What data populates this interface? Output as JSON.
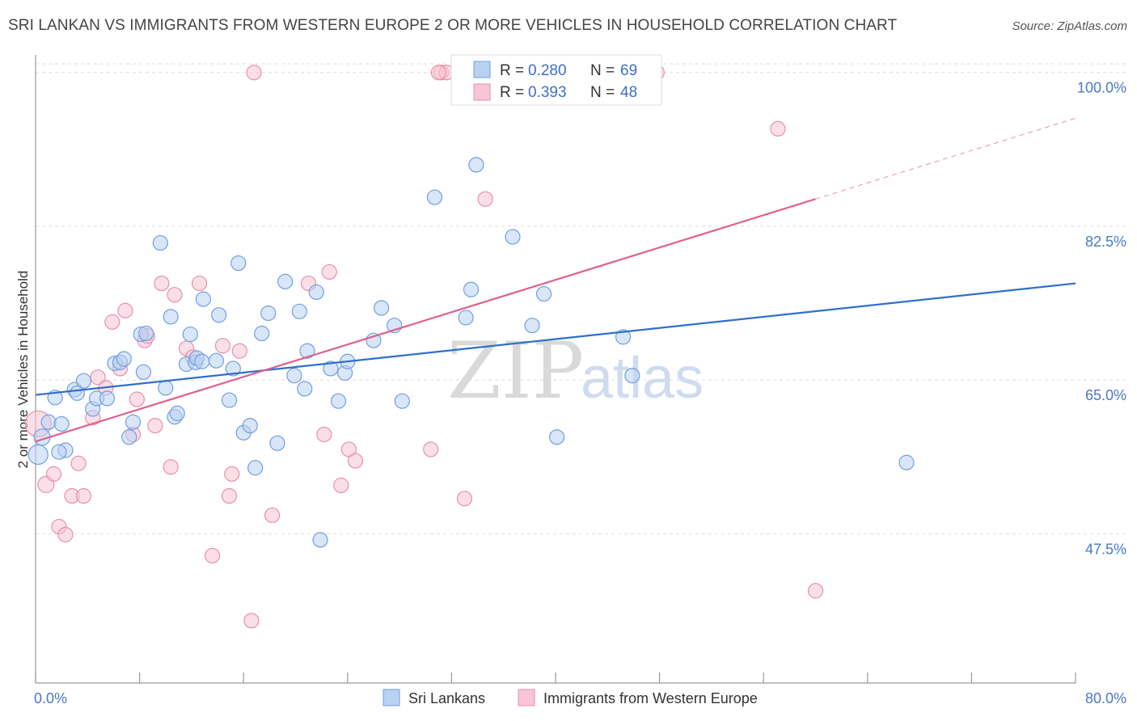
{
  "header": {
    "title": "SRI LANKAN VS IMMIGRANTS FROM WESTERN EUROPE 2 OR MORE VEHICLES IN HOUSEHOLD CORRELATION CHART",
    "source": "Source: ZipAtlas.com"
  },
  "watermark": {
    "zip": "ZIP",
    "atlas": "atlas"
  },
  "chart_data": {
    "type": "scatter",
    "title": "SRI LANKAN VS IMMIGRANTS FROM WESTERN EUROPE 2 OR MORE VEHICLES IN HOUSEHOLD CORRELATION CHART",
    "xlabel": "",
    "ylabel": "2 or more Vehicles in Household",
    "xlim": [
      0,
      80
    ],
    "ylim": [
      30.5,
      102
    ],
    "x_tick_labels": {
      "min": "0.0%",
      "max": "80.0%"
    },
    "y_ticks": [
      {
        "value": 100,
        "label": "100.0%"
      },
      {
        "value": 82.5,
        "label": "82.5%"
      },
      {
        "value": 65,
        "label": "65.0%"
      },
      {
        "value": 47.5,
        "label": "47.5%"
      }
    ],
    "grid": true,
    "legend_position": "bottom-center",
    "stats_box": {
      "r_label": "R =",
      "n_label": "N ="
    },
    "series": [
      {
        "name": "Sri Lankans",
        "color": "#6fa0e0",
        "fill": "#b9d2f2",
        "line_color": "#2f6fcc",
        "r": "0.280",
        "n": "69",
        "trend": {
          "x0": 0,
          "y0": 63.3,
          "x1": 80,
          "y1": 76.0
        },
        "points": [
          [
            0.2,
            56.5,
            12
          ],
          [
            0.5,
            58.5,
            10
          ],
          [
            1.0,
            60.2,
            9
          ],
          [
            1.5,
            63.0,
            9
          ],
          [
            2.0,
            60.0,
            9
          ],
          [
            2.3,
            57.0,
            9
          ],
          [
            3.0,
            63.9,
            9
          ],
          [
            3.2,
            63.5,
            9
          ],
          [
            3.7,
            64.9,
            9
          ],
          [
            4.4,
            61.7,
            9
          ],
          [
            4.7,
            62.9,
            9
          ],
          [
            5.5,
            62.9,
            9
          ],
          [
            6.1,
            66.9,
            9
          ],
          [
            6.5,
            67.0,
            9
          ],
          [
            6.8,
            67.4,
            9
          ],
          [
            7.2,
            58.5,
            9
          ],
          [
            7.5,
            60.2,
            9
          ],
          [
            8.1,
            70.2,
            9
          ],
          [
            8.3,
            65.9,
            9
          ],
          [
            8.5,
            70.3,
            9
          ],
          [
            9.6,
            80.6,
            9
          ],
          [
            10.0,
            64.1,
            9
          ],
          [
            10.4,
            72.2,
            9
          ],
          [
            10.7,
            60.8,
            9
          ],
          [
            10.9,
            61.2,
            9
          ],
          [
            11.6,
            66.8,
            9
          ],
          [
            11.9,
            70.2,
            9
          ],
          [
            12.3,
            67.0,
            9
          ],
          [
            12.4,
            67.5,
            9
          ],
          [
            12.8,
            67.1,
            9
          ],
          [
            12.9,
            74.2,
            9
          ],
          [
            13.9,
            67.2,
            9
          ],
          [
            14.1,
            72.4,
            9
          ],
          [
            14.9,
            62.7,
            9
          ],
          [
            15.2,
            66.3,
            9
          ],
          [
            15.6,
            78.3,
            9
          ],
          [
            16.0,
            59.0,
            9
          ],
          [
            16.5,
            59.8,
            9
          ],
          [
            16.9,
            55.0,
            9
          ],
          [
            17.4,
            70.3,
            9
          ],
          [
            17.9,
            72.6,
            9
          ],
          [
            18.6,
            57.8,
            9
          ],
          [
            19.2,
            76.2,
            9
          ],
          [
            19.9,
            65.5,
            9
          ],
          [
            20.3,
            72.8,
            9
          ],
          [
            20.7,
            64.0,
            9
          ],
          [
            20.9,
            68.3,
            9
          ],
          [
            21.6,
            75.0,
            9
          ],
          [
            21.9,
            46.8,
            9
          ],
          [
            22.7,
            66.3,
            9
          ],
          [
            23.3,
            62.6,
            9
          ],
          [
            23.8,
            65.8,
            9
          ],
          [
            24.0,
            67.1,
            9
          ],
          [
            26.0,
            69.5,
            9
          ],
          [
            26.6,
            73.2,
            9
          ],
          [
            27.6,
            71.2,
            9
          ],
          [
            28.2,
            62.6,
            9
          ],
          [
            30.7,
            85.8,
            9
          ],
          [
            33.1,
            72.1,
            9
          ],
          [
            33.5,
            75.3,
            9
          ],
          [
            33.9,
            89.5,
            9
          ],
          [
            36.7,
            81.3,
            9
          ],
          [
            38.2,
            71.2,
            9
          ],
          [
            39.1,
            74.8,
            9
          ],
          [
            40.1,
            58.5,
            9
          ],
          [
            45.2,
            69.9,
            9
          ],
          [
            45.9,
            65.5,
            9
          ],
          [
            67.0,
            55.6,
            9
          ],
          [
            1.8,
            56.8,
            9
          ]
        ]
      },
      {
        "name": "Immigrants from Western Europe",
        "color": "#e890ac",
        "fill": "#f7c5d4",
        "line_color": "#e0608e",
        "r": "0.393",
        "n": "48",
        "trend": {
          "x0": 0,
          "y0": 58.0,
          "x1": 60,
          "y1": 85.6
        },
        "trend_extension": {
          "x0": 60,
          "y0": 85.6,
          "x1": 80,
          "y1": 94.8
        },
        "points": [
          [
            0.2,
            60.0,
            16
          ],
          [
            0.8,
            53.1,
            10
          ],
          [
            1.4,
            54.3,
            9
          ],
          [
            1.8,
            48.3,
            9
          ],
          [
            2.3,
            47.4,
            9
          ],
          [
            2.8,
            51.8,
            9
          ],
          [
            3.3,
            55.5,
            9
          ],
          [
            3.7,
            51.8,
            9
          ],
          [
            4.4,
            60.7,
            9
          ],
          [
            4.8,
            65.3,
            9
          ],
          [
            5.4,
            64.1,
            9
          ],
          [
            5.9,
            71.6,
            9
          ],
          [
            6.5,
            66.3,
            9
          ],
          [
            6.9,
            72.9,
            9
          ],
          [
            7.5,
            58.8,
            9
          ],
          [
            7.8,
            62.8,
            9
          ],
          [
            8.4,
            69.5,
            9
          ],
          [
            8.6,
            70.0,
            9
          ],
          [
            9.2,
            59.8,
            9
          ],
          [
            9.7,
            76.0,
            9
          ],
          [
            10.4,
            55.1,
            9
          ],
          [
            10.7,
            74.7,
            9
          ],
          [
            11.6,
            68.6,
            9
          ],
          [
            12.1,
            67.6,
            9
          ],
          [
            12.6,
            76.0,
            9
          ],
          [
            13.6,
            45.0,
            9
          ],
          [
            14.4,
            68.9,
            9
          ],
          [
            14.9,
            51.8,
            9
          ],
          [
            15.1,
            54.3,
            9
          ],
          [
            15.7,
            68.3,
            9
          ],
          [
            16.6,
            37.6,
            9
          ],
          [
            16.8,
            100.0,
            9
          ],
          [
            18.2,
            49.6,
            9
          ],
          [
            21.0,
            76.0,
            9
          ],
          [
            22.2,
            58.8,
            9
          ],
          [
            22.6,
            77.3,
            9
          ],
          [
            23.5,
            53.0,
            9
          ],
          [
            24.1,
            57.1,
            9
          ],
          [
            24.6,
            55.8,
            9
          ],
          [
            30.4,
            57.1,
            9
          ],
          [
            31.2,
            100.0,
            9
          ],
          [
            31.6,
            100.0,
            9
          ],
          [
            33.0,
            51.5,
            9
          ],
          [
            34.6,
            85.6,
            9
          ],
          [
            47.8,
            100.0,
            9
          ],
          [
            57.1,
            93.6,
            9
          ],
          [
            60.0,
            41.0,
            9
          ],
          [
            31.0,
            100.0,
            9
          ]
        ]
      }
    ]
  }
}
